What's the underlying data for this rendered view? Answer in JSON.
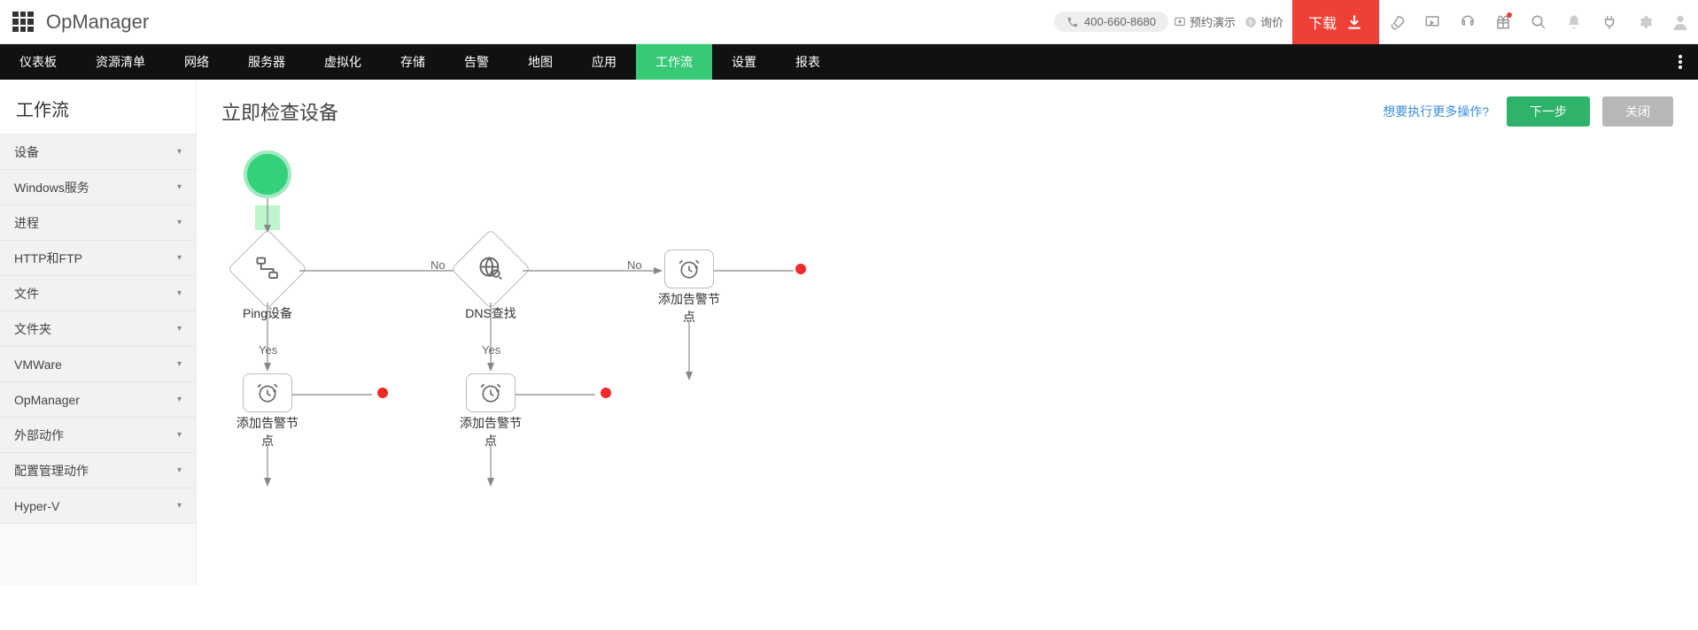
{
  "colors": {
    "accent_green": "#37c976",
    "accent_red": "#ee4036",
    "node_green": "#33d17a",
    "end_red": "#ee2a2a",
    "link_blue": "#3b8ede",
    "gray_btn": "#b7b7b7"
  },
  "app": {
    "title": "OpManager"
  },
  "header": {
    "phone": "400-660-8680",
    "demo": "预约演示",
    "quote": "询价",
    "download": "下载"
  },
  "nav": {
    "items": [
      {
        "label": "仪表板"
      },
      {
        "label": "资源清单"
      },
      {
        "label": "网络"
      },
      {
        "label": "服务器"
      },
      {
        "label": "虚拟化"
      },
      {
        "label": "存储"
      },
      {
        "label": "告警"
      },
      {
        "label": "地图"
      },
      {
        "label": "应用"
      },
      {
        "label": "工作流",
        "active": true
      },
      {
        "label": "设置"
      },
      {
        "label": "报表"
      }
    ]
  },
  "sidebar": {
    "title": "工作流",
    "items": [
      {
        "label": "设备"
      },
      {
        "label": "Windows服务"
      },
      {
        "label": "进程"
      },
      {
        "label": "HTTP和FTP"
      },
      {
        "label": "文件"
      },
      {
        "label": "文件夹"
      },
      {
        "label": "VMWare"
      },
      {
        "label": "OpManager"
      },
      {
        "label": "外部动作"
      },
      {
        "label": "配置管理动作"
      },
      {
        "label": "Hyper-V"
      }
    ]
  },
  "canvas": {
    "title": "立即检查设备",
    "more_ops": "想要执行更多操作?",
    "btn_next": "下一步",
    "btn_close": "关闭",
    "label_yes": "Yes",
    "label_no": "No",
    "label_no2": "No",
    "label_yes2": "Yes",
    "node_ping": "Ping设备",
    "node_dns": "DNS查找",
    "node_alarm": "添加告警节点",
    "node_alarm2": "添加告警节点",
    "node_alarm3": "添加告警节点"
  }
}
